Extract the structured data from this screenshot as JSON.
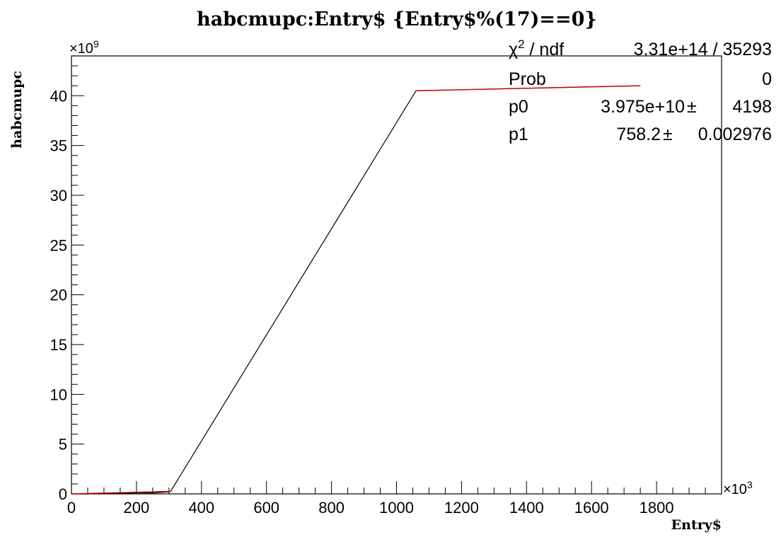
{
  "chart_data": {
    "type": "line",
    "title": "habcmupc:Entry$ {Entry$%(17)==0}",
    "xlabel": "Entry$",
    "ylabel": "habcmupc",
    "x_exponent": "×10",
    "x_exponent_power": "3",
    "y_exponent": "×10",
    "y_exponent_power": "9",
    "xlim": [
      0,
      2000
    ],
    "ylim": [
      0,
      44
    ],
    "x_ticks": [
      0,
      200,
      400,
      600,
      800,
      1000,
      1200,
      1400,
      1600,
      1800
    ],
    "x_tick_labels": [
      "0",
      "200",
      "400",
      "600",
      "800",
      "1000",
      "1200",
      "1400",
      "1600",
      "1800"
    ],
    "y_ticks": [
      0,
      5,
      10,
      15,
      20,
      25,
      30,
      35,
      40
    ],
    "y_tick_labels": [
      "0",
      "5",
      "10",
      "15",
      "20",
      "25",
      "30",
      "35",
      "40"
    ],
    "grid": false,
    "series": [
      {
        "color": "#000000",
        "points": [
          [
            0,
            0
          ],
          [
            50,
            0
          ],
          [
            100,
            0.05
          ],
          [
            150,
            0.05
          ],
          [
            200,
            0.1
          ],
          [
            250,
            0.1
          ],
          [
            300,
            0.2
          ],
          [
            305,
            0.25
          ],
          [
            1060,
            40.5
          ],
          [
            1200,
            40.6
          ],
          [
            1400,
            40.75
          ],
          [
            1600,
            40.9
          ],
          [
            1750,
            41.0
          ]
        ]
      },
      {
        "color": "#cc0000",
        "points": [
          [
            0,
            0
          ],
          [
            305,
            0.25
          ]
        ]
      },
      {
        "color": "#cc0000",
        "points": [
          [
            1060,
            40.5
          ],
          [
            1750,
            41.0
          ]
        ]
      }
    ],
    "stats_box": {
      "position": "top-right",
      "rows": [
        {
          "label": "χ",
          "label_sup": "2",
          "label_rest": " / ndf",
          "value": "3.31e+14 / 35293",
          "error": ""
        },
        {
          "label": "Prob",
          "label_sup": "",
          "label_rest": "",
          "value": "0",
          "error": ""
        },
        {
          "label": "p0",
          "label_sup": "",
          "label_rest": "",
          "value": "3.975e+10",
          "error": "4198"
        },
        {
          "label": "p1",
          "label_sup": "",
          "label_rest": "",
          "value": "758.2",
          "error": "0.002976"
        }
      ],
      "pm_symbol": "±"
    }
  }
}
